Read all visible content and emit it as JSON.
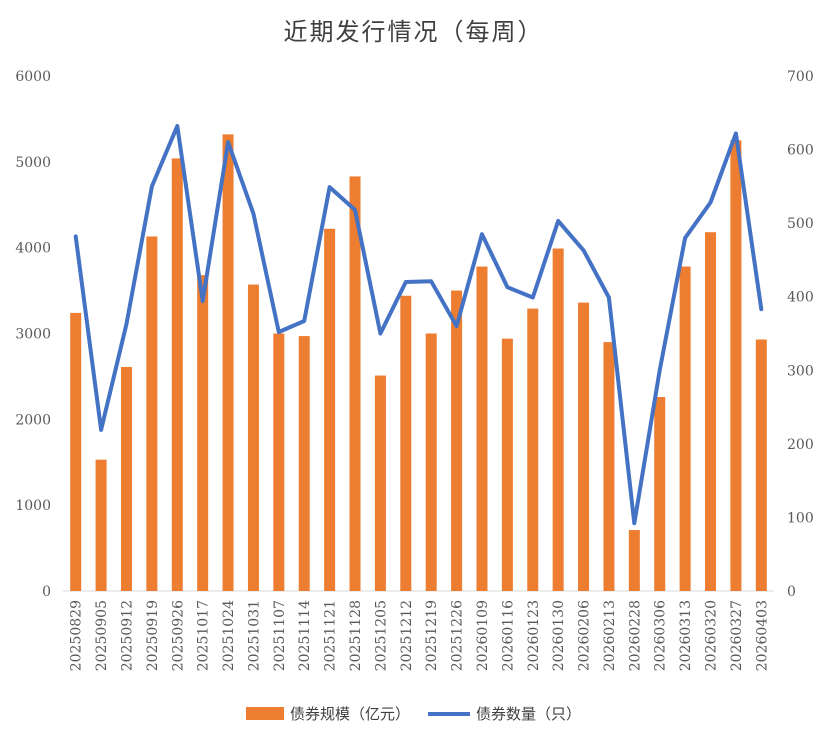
{
  "chart_data": {
    "type": "bar+line",
    "title": "近期发行情况（每周）",
    "categories": [
      "20250829",
      "20250905",
      "20250912",
      "20250919",
      "20250926",
      "20251017",
      "20251024",
      "20251031",
      "20251107",
      "20251114",
      "20251121",
      "20251128",
      "20251205",
      "20251212",
      "20251219",
      "20251226",
      "20260109",
      "20260116",
      "20260123",
      "20260130",
      "20260206",
      "20260213",
      "20260228",
      "20260306",
      "20260313",
      "20260320",
      "20260327",
      "20260403"
    ],
    "series": [
      {
        "name": "债券规模（亿元）",
        "type": "bar",
        "axis": "left",
        "color": "#ED7D31",
        "values": [
          3240,
          1530,
          2610,
          4130,
          5040,
          3680,
          5320,
          3570,
          3000,
          2970,
          4220,
          4830,
          2510,
          3440,
          3000,
          3500,
          3780,
          2940,
          3290,
          3990,
          3360,
          2900,
          710,
          2260,
          3780,
          4180,
          5250,
          2930
        ]
      },
      {
        "name": "债券数量（只）",
        "type": "line",
        "axis": "right",
        "color": "#4472C4",
        "values": [
          482,
          219,
          363,
          550,
          632,
          394,
          610,
          513,
          352,
          367,
          549,
          518,
          350,
          420,
          421,
          360,
          485,
          413,
          399,
          503,
          463,
          399,
          92,
          300,
          480,
          528,
          622,
          383
        ]
      }
    ],
    "y_left": {
      "min": 0,
      "max": 6000,
      "ticks": [
        0,
        1000,
        2000,
        3000,
        4000,
        5000,
        6000
      ]
    },
    "y_right": {
      "min": 0,
      "max": 700,
      "ticks": [
        0,
        100,
        200,
        300,
        400,
        500,
        600,
        700
      ]
    },
    "grid": false,
    "legend_position": "bottom"
  }
}
